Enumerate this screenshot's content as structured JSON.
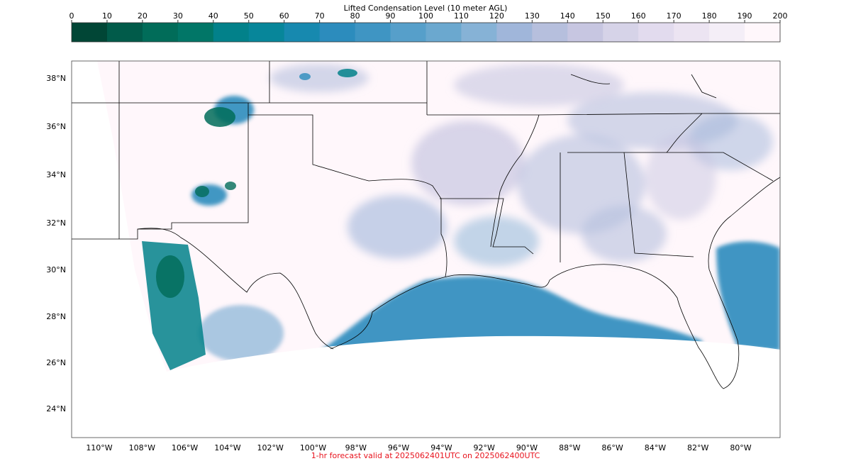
{
  "title": "Lifted Condensation Level (10 meter AGL)",
  "footer": "1-hr forecast valid at 2025062401UTC on 2025062400UTC",
  "footer_color": "#e8141e",
  "colorbar": {
    "ticks": [
      "0",
      "10",
      "20",
      "30",
      "40",
      "50",
      "60",
      "70",
      "80",
      "90",
      "100",
      "110",
      "120",
      "130",
      "140",
      "150",
      "160",
      "170",
      "180",
      "190",
      "200"
    ],
    "colors": [
      "#014636",
      "#015b4a",
      "#016c59",
      "#017667",
      "#02818a",
      "#07869a",
      "#1789af",
      "#2c8cbd",
      "#3f95c3",
      "#569fca",
      "#6ba8cf",
      "#86b2d6",
      "#a0b6da",
      "#b6bfdd",
      "#c7c6e1",
      "#d6d3e8",
      "#e2dbee",
      "#ece4f2",
      "#f4eef7",
      "#fff7fb"
    ]
  },
  "map": {
    "lat_labels": [
      "38°N",
      "36°N",
      "34°N",
      "32°N",
      "30°N",
      "28°N",
      "26°N",
      "24°N"
    ],
    "lon_labels": [
      "110°W",
      "108°W",
      "106°W",
      "104°W",
      "102°W",
      "100°W",
      "98°W",
      "96°W",
      "94°W",
      "92°W",
      "90°W",
      "88°W",
      "86°W",
      "84°W",
      "82°W",
      "80°W"
    ],
    "background_color": "#fff7fb",
    "gulf_color": "#3f95c3",
    "teal_color": "#016c59",
    "border_color": "#000000"
  }
}
